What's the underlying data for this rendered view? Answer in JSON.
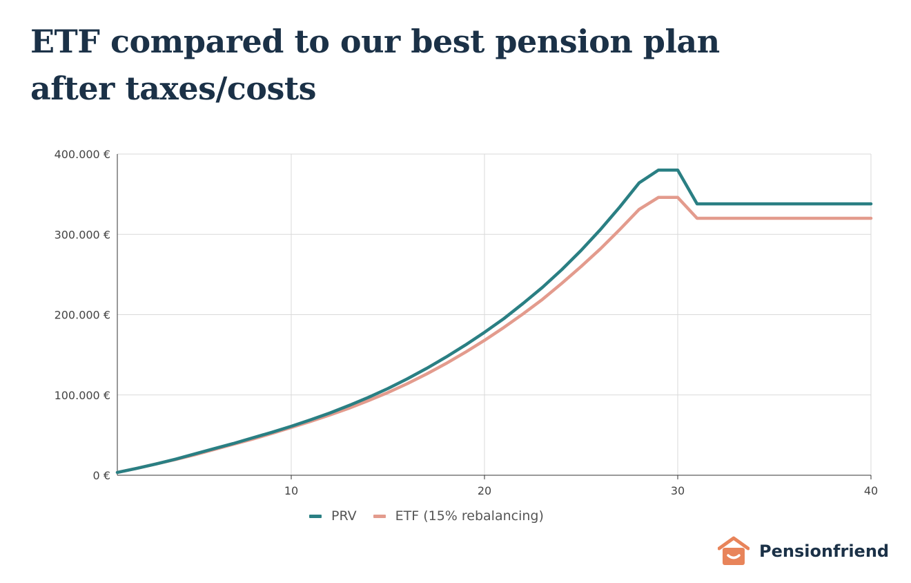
{
  "header": {
    "title_line1": "ETF compared to our best pension plan",
    "title_line2": "after taxes/costs"
  },
  "brand": {
    "name": "Pensionfriend",
    "logo_icon": "house-smile-icon",
    "logo_color": "#e8845a"
  },
  "chart_data": {
    "type": "line",
    "title": "ETF compared to our best pension plan after taxes/costs",
    "xlabel": "",
    "ylabel": "",
    "xlim": [
      1,
      40
    ],
    "ylim": [
      0,
      400000
    ],
    "x_ticks": [
      "10",
      "20",
      "30",
      "40"
    ],
    "x_tick_values": [
      10,
      20,
      30,
      40
    ],
    "y_ticks": [
      "0 €",
      "100.000 €",
      "200.000 €",
      "300.000 €",
      "400.000 €"
    ],
    "y_tick_values": [
      0,
      100000,
      200000,
      300000,
      400000
    ],
    "grid": true,
    "legend_position": "bottom",
    "x": [
      1,
      2,
      3,
      4,
      5,
      6,
      7,
      8,
      9,
      10,
      11,
      12,
      13,
      14,
      15,
      16,
      17,
      18,
      19,
      20,
      21,
      22,
      23,
      24,
      25,
      26,
      27,
      28,
      29,
      30,
      31,
      32,
      33,
      34,
      35,
      36,
      37,
      38,
      39,
      40
    ],
    "series": [
      {
        "name": "PRV",
        "color": "#2a7f83",
        "values": [
          3500,
          8500,
          14000,
          20000,
          26500,
          33000,
          39500,
          46500,
          53500,
          61000,
          69000,
          77500,
          87000,
          97000,
          108000,
          120000,
          133000,
          147000,
          162000,
          178000,
          195000,
          214000,
          234000,
          256000,
          280000,
          306000,
          334000,
          364000,
          380000,
          380000,
          338000,
          338000,
          338000,
          338000,
          338000,
          338000,
          338000,
          338000,
          338000,
          338000
        ]
      },
      {
        "name": "ETF (15% rebalancing)",
        "color": "#e39b8d",
        "values": [
          3500,
          8500,
          14000,
          19500,
          25500,
          32000,
          38500,
          45000,
          52000,
          59500,
          67000,
          75000,
          83500,
          93000,
          103000,
          114000,
          126000,
          139000,
          153000,
          168000,
          184000,
          201000,
          219000,
          239000,
          260000,
          282000,
          306000,
          331000,
          346000,
          346000,
          320000,
          320000,
          320000,
          320000,
          320000,
          320000,
          320000,
          320000,
          320000,
          320000
        ]
      }
    ]
  }
}
